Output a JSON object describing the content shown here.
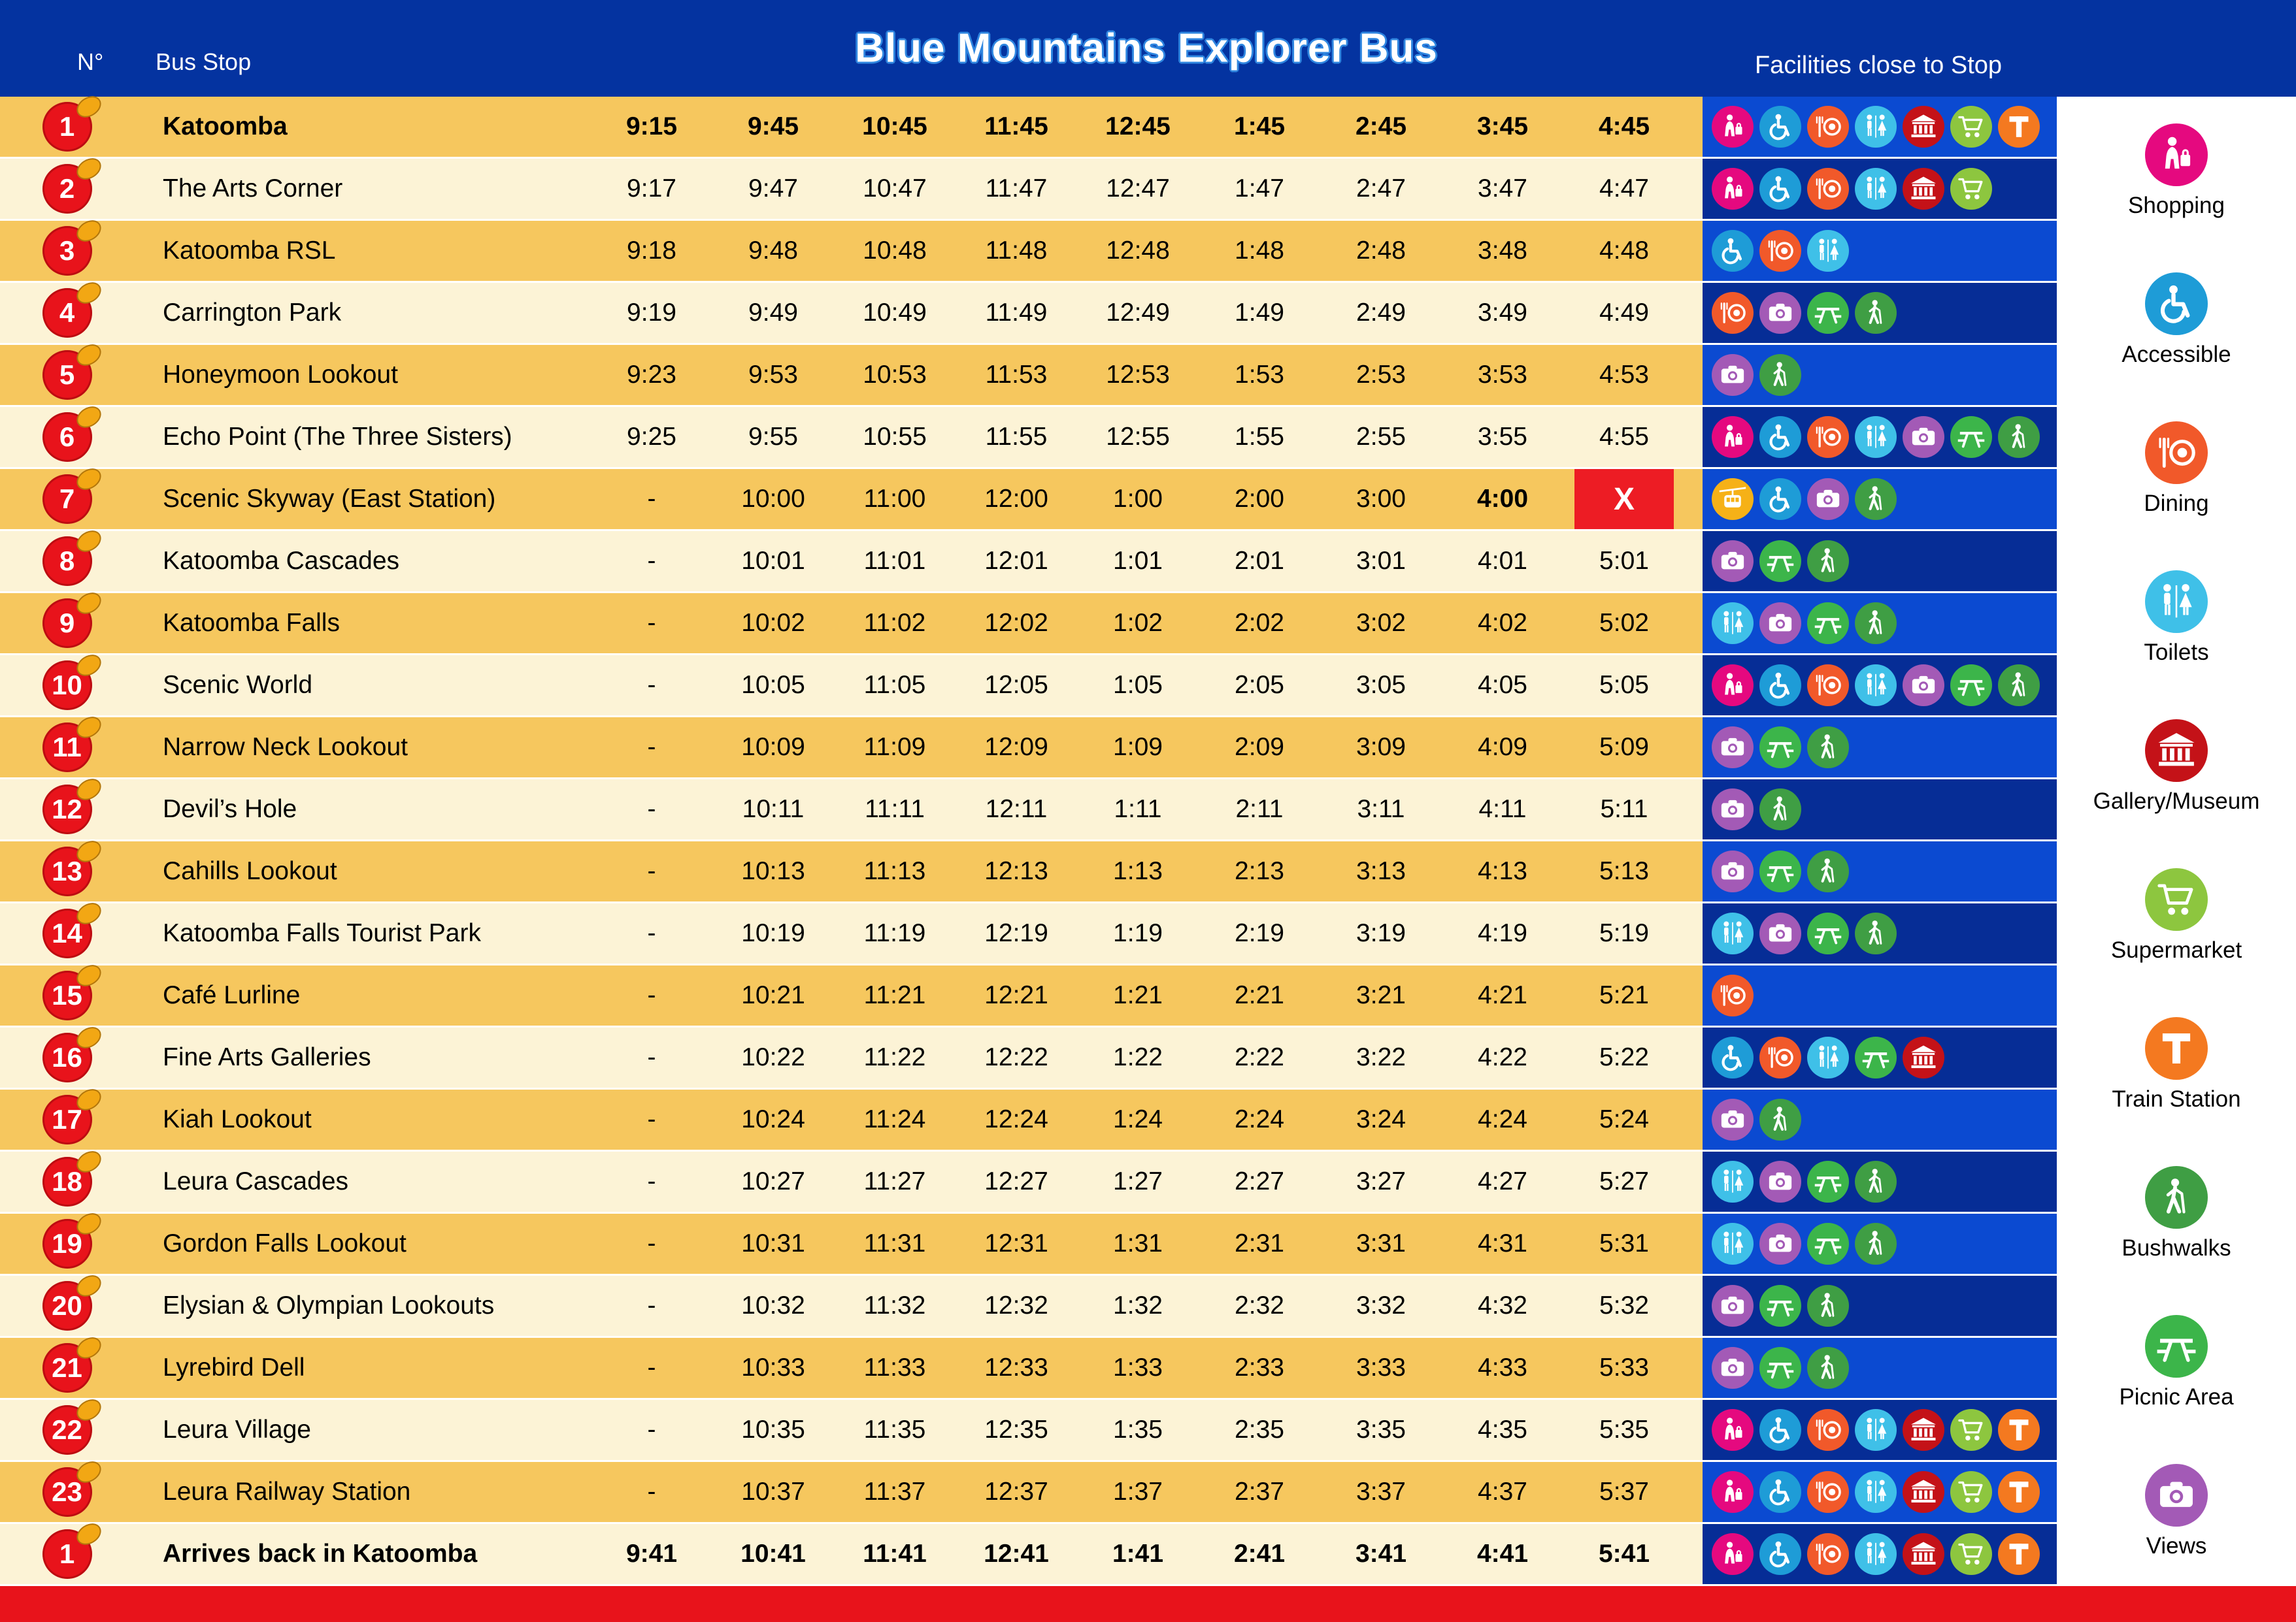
{
  "header": {
    "col_no": "N°",
    "col_stop": "Bus Stop",
    "logo": "Blue Mountains Explorer Bus",
    "col_facilities": "Facilities close to Stop"
  },
  "closed_mark": "X",
  "colors": {
    "header_bg": "#0433A0",
    "row_gold": "#F6C75E",
    "row_cream": "#FCF3D6",
    "strip_bright": "#0B4AD1",
    "strip_dark": "#062D96",
    "accent_red": "#E8131B",
    "no_service_red": "#ED1C24"
  },
  "icon_colors": {
    "shopping": "#E5097F",
    "accessible": "#1E9CD7",
    "dining": "#F1592A",
    "toilets": "#3FC0E8",
    "gallery": "#C41218",
    "supermarket": "#8DC63F",
    "train": "#F47920",
    "bushwalks": "#3F9E44",
    "picnic": "#3CB54A",
    "views": "#A35AB6",
    "skyway": "#F6B117"
  },
  "legend": [
    {
      "id": "shopping",
      "label": "Shopping"
    },
    {
      "id": "accessible",
      "label": "Accessible"
    },
    {
      "id": "dining",
      "label": "Dining"
    },
    {
      "id": "toilets",
      "label": "Toilets"
    },
    {
      "id": "gallery",
      "label": "Gallery/Museum"
    },
    {
      "id": "supermarket",
      "label": "Supermarket"
    },
    {
      "id": "train",
      "label": "Train Station"
    },
    {
      "id": "bushwalks",
      "label": "Bushwalks"
    },
    {
      "id": "picnic",
      "label": "Picnic Area"
    },
    {
      "id": "views",
      "label": "Views"
    }
  ],
  "rows": [
    {
      "badge": "1",
      "stop": "Katoomba",
      "bold": true,
      "times": [
        "9:15",
        "9:45",
        "10:45",
        "11:45",
        "12:45",
        "1:45",
        "2:45",
        "3:45",
        "4:45"
      ],
      "facilities": [
        "shopping",
        "accessible",
        "dining",
        "toilets",
        "gallery",
        "supermarket",
        "train"
      ]
    },
    {
      "badge": "2",
      "stop": "The Arts Corner",
      "times": [
        "9:17",
        "9:47",
        "10:47",
        "11:47",
        "12:47",
        "1:47",
        "2:47",
        "3:47",
        "4:47"
      ],
      "facilities": [
        "shopping",
        "accessible",
        "dining",
        "toilets",
        "gallery",
        "supermarket"
      ]
    },
    {
      "badge": "3",
      "stop": "Katoomba RSL",
      "times": [
        "9:18",
        "9:48",
        "10:48",
        "11:48",
        "12:48",
        "1:48",
        "2:48",
        "3:48",
        "4:48"
      ],
      "facilities": [
        "accessible",
        "dining",
        "toilets"
      ]
    },
    {
      "badge": "4",
      "stop": "Carrington Park",
      "times": [
        "9:19",
        "9:49",
        "10:49",
        "11:49",
        "12:49",
        "1:49",
        "2:49",
        "3:49",
        "4:49"
      ],
      "facilities": [
        "dining",
        "views",
        "picnic",
        "bushwalks"
      ]
    },
    {
      "badge": "5",
      "stop": "Honeymoon Lookout",
      "times": [
        "9:23",
        "9:53",
        "10:53",
        "11:53",
        "12:53",
        "1:53",
        "2:53",
        "3:53",
        "4:53"
      ],
      "facilities": [
        "views",
        "bushwalks"
      ]
    },
    {
      "badge": "6",
      "stop": "Echo Point (The Three Sisters)",
      "times": [
        "9:25",
        "9:55",
        "10:55",
        "11:55",
        "12:55",
        "1:55",
        "2:55",
        "3:55",
        "4:55"
      ],
      "facilities": [
        "shopping",
        "accessible",
        "dining",
        "toilets",
        "views",
        "picnic",
        "bushwalks"
      ]
    },
    {
      "badge": "7",
      "stop": "Scenic Skyway (East Station)",
      "times": [
        "-",
        "10:00",
        "11:00",
        "12:00",
        "1:00",
        "2:00",
        "3:00",
        "4:00",
        "X"
      ],
      "bold_times": [
        7
      ],
      "closed": 8,
      "facilities": [
        "skyway",
        "accessible",
        "views",
        "bushwalks"
      ]
    },
    {
      "badge": "8",
      "stop": "Katoomba Cascades",
      "times": [
        "-",
        "10:01",
        "11:01",
        "12:01",
        "1:01",
        "2:01",
        "3:01",
        "4:01",
        "5:01"
      ],
      "facilities": [
        "views",
        "picnic",
        "bushwalks"
      ]
    },
    {
      "badge": "9",
      "stop": "Katoomba Falls",
      "times": [
        "-",
        "10:02",
        "11:02",
        "12:02",
        "1:02",
        "2:02",
        "3:02",
        "4:02",
        "5:02"
      ],
      "facilities": [
        "toilets",
        "views",
        "picnic",
        "bushwalks"
      ]
    },
    {
      "badge": "10",
      "stop": "Scenic World",
      "times": [
        "-",
        "10:05",
        "11:05",
        "12:05",
        "1:05",
        "2:05",
        "3:05",
        "4:05",
        "5:05"
      ],
      "facilities": [
        "shopping",
        "accessible",
        "dining",
        "toilets",
        "views",
        "picnic",
        "bushwalks"
      ]
    },
    {
      "badge": "11",
      "stop": "Narrow Neck Lookout",
      "times": [
        "-",
        "10:09",
        "11:09",
        "12:09",
        "1:09",
        "2:09",
        "3:09",
        "4:09",
        "5:09"
      ],
      "facilities": [
        "views",
        "picnic",
        "bushwalks"
      ]
    },
    {
      "badge": "12",
      "stop": "Devil’s Hole",
      "times": [
        "-",
        "10:11",
        "11:11",
        "12:11",
        "1:11",
        "2:11",
        "3:11",
        "4:11",
        "5:11"
      ],
      "facilities": [
        "views",
        "bushwalks"
      ]
    },
    {
      "badge": "13",
      "stop": "Cahills Lookout",
      "times": [
        "-",
        "10:13",
        "11:13",
        "12:13",
        "1:13",
        "2:13",
        "3:13",
        "4:13",
        "5:13"
      ],
      "facilities": [
        "views",
        "picnic",
        "bushwalks"
      ]
    },
    {
      "badge": "14",
      "stop": "Katoomba Falls Tourist Park",
      "times": [
        "-",
        "10:19",
        "11:19",
        "12:19",
        "1:19",
        "2:19",
        "3:19",
        "4:19",
        "5:19"
      ],
      "facilities": [
        "toilets",
        "views",
        "picnic",
        "bushwalks"
      ]
    },
    {
      "badge": "15",
      "stop": "Café Lurline",
      "times": [
        "-",
        "10:21",
        "11:21",
        "12:21",
        "1:21",
        "2:21",
        "3:21",
        "4:21",
        "5:21"
      ],
      "facilities": [
        "dining"
      ]
    },
    {
      "badge": "16",
      "stop": "Fine Arts Galleries",
      "times": [
        "-",
        "10:22",
        "11:22",
        "12:22",
        "1:22",
        "2:22",
        "3:22",
        "4:22",
        "5:22"
      ],
      "facilities": [
        "accessible",
        "dining",
        "toilets",
        "picnic",
        "gallery"
      ]
    },
    {
      "badge": "17",
      "stop": "Kiah Lookout",
      "times": [
        "-",
        "10:24",
        "11:24",
        "12:24",
        "1:24",
        "2:24",
        "3:24",
        "4:24",
        "5:24"
      ],
      "facilities": [
        "views",
        "bushwalks"
      ]
    },
    {
      "badge": "18",
      "stop": "Leura Cascades",
      "times": [
        "-",
        "10:27",
        "11:27",
        "12:27",
        "1:27",
        "2:27",
        "3:27",
        "4:27",
        "5:27"
      ],
      "facilities": [
        "toilets",
        "views",
        "picnic",
        "bushwalks"
      ]
    },
    {
      "badge": "19",
      "stop": "Gordon Falls Lookout",
      "times": [
        "-",
        "10:31",
        "11:31",
        "12:31",
        "1:31",
        "2:31",
        "3:31",
        "4:31",
        "5:31"
      ],
      "facilities": [
        "toilets",
        "views",
        "picnic",
        "bushwalks"
      ]
    },
    {
      "badge": "20",
      "stop": "Elysian & Olympian Lookouts",
      "times": [
        "-",
        "10:32",
        "11:32",
        "12:32",
        "1:32",
        "2:32",
        "3:32",
        "4:32",
        "5:32"
      ],
      "facilities": [
        "views",
        "picnic",
        "bushwalks"
      ]
    },
    {
      "badge": "21",
      "stop": "Lyrebird Dell",
      "times": [
        "-",
        "10:33",
        "11:33",
        "12:33",
        "1:33",
        "2:33",
        "3:33",
        "4:33",
        "5:33"
      ],
      "facilities": [
        "views",
        "picnic",
        "bushwalks"
      ]
    },
    {
      "badge": "22",
      "stop": "Leura Village",
      "times": [
        "-",
        "10:35",
        "11:35",
        "12:35",
        "1:35",
        "2:35",
        "3:35",
        "4:35",
        "5:35"
      ],
      "facilities": [
        "shopping",
        "accessible",
        "dining",
        "toilets",
        "gallery",
        "supermarket",
        "train"
      ]
    },
    {
      "badge": "23",
      "stop": "Leura Railway Station",
      "times": [
        "-",
        "10:37",
        "11:37",
        "12:37",
        "1:37",
        "2:37",
        "3:37",
        "4:37",
        "5:37"
      ],
      "facilities": [
        "shopping",
        "accessible",
        "dining",
        "toilets",
        "gallery",
        "supermarket",
        "train"
      ]
    },
    {
      "badge": "1",
      "stop": "Arrives back in Katoomba",
      "bold": true,
      "times": [
        "9:41",
        "10:41",
        "11:41",
        "12:41",
        "1:41",
        "2:41",
        "3:41",
        "4:41",
        "5:41"
      ],
      "facilities": [
        "shopping",
        "accessible",
        "dining",
        "toilets",
        "gallery",
        "supermarket",
        "train"
      ]
    }
  ]
}
